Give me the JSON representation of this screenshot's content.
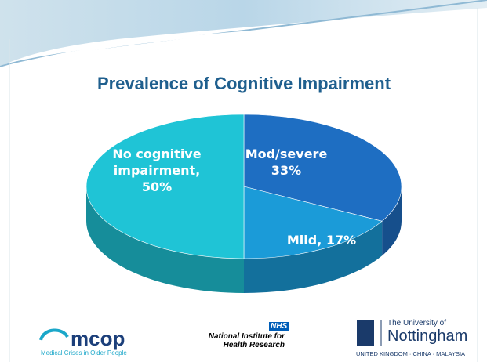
{
  "chart_data": {
    "type": "pie",
    "title": "Prevalence of Cognitive Impairment",
    "values": [
      33,
      17,
      50
    ],
    "value_labels": [
      "Mod/severe 33%",
      "Mild, 17%",
      "No cognitive impairment, 50%"
    ],
    "colors": [
      "#1e6ec2",
      "#1b9bd8",
      "#1fc4d6"
    ]
  },
  "footer": {
    "mcop": "mcop",
    "mcop_tagline": "Medical Crises in Older People",
    "nhs": "NHS",
    "nihr": "National Institute for Health Research",
    "uni_top": "The University of",
    "uni_name": "Nottingham",
    "uni_sub": "UNITED KINGDOM · CHINA · MALAYSIA"
  }
}
